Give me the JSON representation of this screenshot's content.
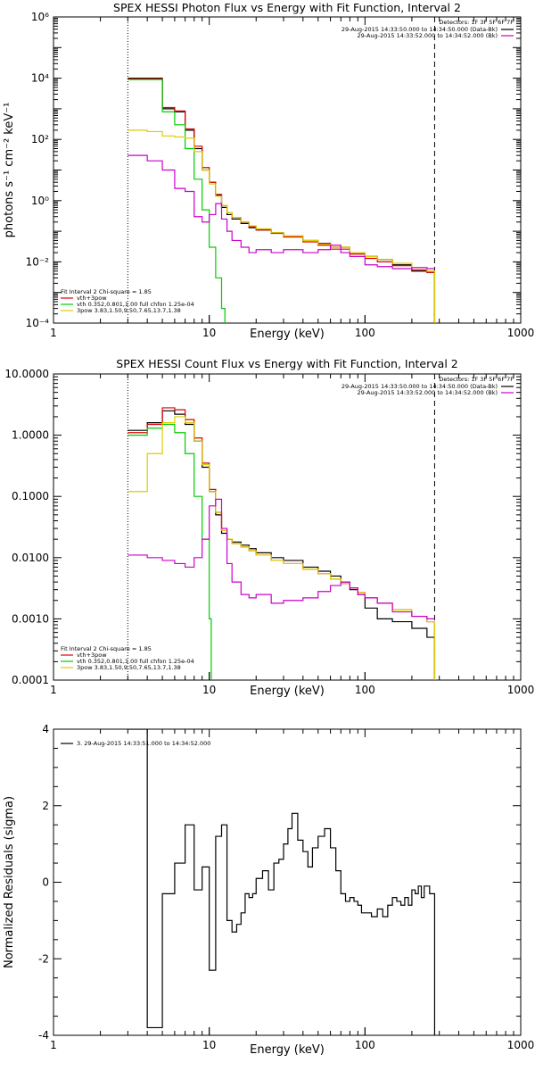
{
  "chart_data": [
    {
      "type": "line",
      "title": "SPEX HESSI Photon Flux vs Energy with Fit Function, Interval 2",
      "xlabel": "Energy (keV)",
      "ylabel": "photons s⁻¹ cm⁻² keV⁻¹",
      "xscale": "log",
      "yscale": "log",
      "xlim": [
        1,
        1000
      ],
      "ylim": [
        0.0001,
        1000000
      ],
      "x_ticks": [
        1,
        10,
        100,
        1000
      ],
      "x_tick_labels": [
        "1",
        "10",
        "100",
        "1000"
      ],
      "y_ticks": [
        0.0001,
        0.01,
        1,
        100,
        10000,
        1000000
      ],
      "y_tick_labels": [
        "10⁻⁴",
        "10⁻²",
        "10⁰",
        "10²",
        "10⁴",
        "10⁶"
      ],
      "fit_range": [
        3,
        280
      ],
      "legend_top": {
        "position": "top-right",
        "header": "Detectors: 1F 3F 5F 6F 7F",
        "entries": [
          {
            "label": "29-Aug-2015 14:33:50.000 to 14:34:50.000 (Data-Bk)",
            "color": "#000000"
          },
          {
            "label": "29-Aug-2015 14:33:52.000 to 14:34:52.000 (Bk)",
            "color": "#cc00cc"
          }
        ]
      },
      "legend_bottom": {
        "position": "bottom-left",
        "header": "Fit Interval 2   Chi-square = 1.85",
        "entries": [
          {
            "label": "vth+3pow",
            "color": "#dd0000"
          },
          {
            "label": "vth 0.352,0.801,1.00  full chfon 1.25e-04",
            "color": "#00cc00"
          },
          {
            "label": "3pow 3.83,1.50,9.50,7.65,13.7,1.38",
            "color": "#ddcc00"
          }
        ]
      },
      "series": [
        {
          "name": "Data-Bk",
          "color": "#000000",
          "x": [
            3,
            4,
            5,
            6,
            7,
            8,
            9,
            10,
            11,
            12,
            13,
            14,
            16,
            18,
            20,
            25,
            30,
            40,
            50,
            60,
            80,
            100,
            120,
            150,
            200,
            250,
            280
          ],
          "y": [
            10000,
            10000,
            1000,
            800,
            200,
            50,
            10,
            4,
            1.5,
            0.6,
            0.35,
            0.25,
            0.18,
            0.13,
            0.11,
            0.09,
            0.07,
            0.05,
            0.04,
            0.03,
            0.02,
            0.015,
            0.012,
            0.008,
            0.005,
            0.0045,
            0.0001
          ]
        },
        {
          "name": "vth+3pow",
          "color": "#dd0000",
          "x": [
            3,
            4,
            5,
            6,
            7,
            8,
            9,
            10,
            11,
            12,
            13,
            14,
            16,
            18,
            20,
            25,
            30,
            40,
            50,
            60,
            80,
            100,
            120,
            150,
            200,
            250,
            280
          ],
          "y": [
            9500,
            9500,
            1100,
            850,
            220,
            60,
            12,
            4,
            1.6,
            0.7,
            0.4,
            0.28,
            0.2,
            0.14,
            0.11,
            0.085,
            0.065,
            0.045,
            0.035,
            0.026,
            0.018,
            0.013,
            0.01,
            0.0075,
            0.0055,
            0.0045,
            0.0001
          ]
        },
        {
          "name": "vth",
          "color": "#00cc00",
          "x": [
            3,
            4,
            5,
            6,
            7,
            8,
            9,
            10,
            11,
            12,
            12.6
          ],
          "y": [
            9000,
            9000,
            800,
            300,
            50,
            5,
            0.5,
            0.03,
            0.003,
            0.0003,
            0.0001
          ]
        },
        {
          "name": "3pow",
          "color": "#ddcc00",
          "x": [
            3,
            4,
            5,
            6,
            7,
            8,
            9,
            10,
            11,
            12,
            13,
            14,
            16,
            18,
            20,
            25,
            30,
            40,
            50,
            60,
            80,
            100,
            120,
            150,
            200,
            250,
            280
          ],
          "y": [
            200,
            180,
            130,
            120,
            110,
            40,
            10,
            3.5,
            1.4,
            0.7,
            0.4,
            0.28,
            0.2,
            0.15,
            0.12,
            0.09,
            0.07,
            0.05,
            0.038,
            0.03,
            0.02,
            0.015,
            0.012,
            0.009,
            0.0065,
            0.005,
            0.0001
          ]
        },
        {
          "name": "Bk",
          "color": "#cc00cc",
          "x": [
            3,
            4,
            5,
            6,
            7,
            8,
            9,
            10,
            11,
            12,
            13,
            14,
            16,
            18,
            20,
            25,
            30,
            40,
            50,
            60,
            70,
            80,
            100,
            120,
            150,
            200,
            250,
            280
          ],
          "y": [
            30,
            20,
            10,
            2.5,
            2,
            0.3,
            0.2,
            0.35,
            0.8,
            0.25,
            0.1,
            0.05,
            0.03,
            0.02,
            0.025,
            0.02,
            0.025,
            0.02,
            0.025,
            0.035,
            0.02,
            0.015,
            0.008,
            0.007,
            0.006,
            0.0065,
            0.006,
            0.006
          ]
        }
      ]
    },
    {
      "type": "line",
      "title": "SPEX HESSI Count Flux vs Energy with Fit Function, Interval 2",
      "xlabel": "Energy (keV)",
      "ylabel": "",
      "xscale": "log",
      "yscale": "log",
      "xlim": [
        1,
        1000
      ],
      "ylim": [
        0.0001,
        10
      ],
      "x_ticks": [
        1,
        10,
        100,
        1000
      ],
      "x_tick_labels": [
        "1",
        "10",
        "100",
        "1000"
      ],
      "y_ticks": [
        0.0001,
        0.001,
        0.01,
        0.1,
        1,
        10
      ],
      "y_tick_labels": [
        "0.0001",
        "0.0010",
        "0.0100",
        "0.1000",
        "1.0000",
        "10.0000"
      ],
      "fit_range": [
        3,
        280
      ],
      "legend_top": {
        "position": "top-right",
        "header": "Detectors: 1F 3F 5F 6F 7F",
        "entries": [
          {
            "label": "29-Aug-2015 14:33:50.000 to 14:34:50.000 (Data-Bk)",
            "color": "#000000"
          },
          {
            "label": "29-Aug-2015 14:33:52.000 to 14:34:52.000 (Bk)",
            "color": "#cc00cc"
          }
        ]
      },
      "legend_bottom": {
        "position": "bottom-left",
        "header": "Fit Interval 2   Chi-square = 1.85",
        "entries": [
          {
            "label": "vth+3pow",
            "color": "#dd0000"
          },
          {
            "label": "vth 0.352,0.801,1.00  full chfon 1.25e-04",
            "color": "#00cc00"
          },
          {
            "label": "3pow 3.83,1.50,9.50,7.65,13.7,1.38",
            "color": "#ddcc00"
          }
        ]
      },
      "series": [
        {
          "name": "Data-Bk",
          "color": "#000000",
          "x": [
            3,
            4,
            5,
            6,
            7,
            8,
            9,
            10,
            11,
            12,
            13,
            14,
            16,
            18,
            20,
            25,
            30,
            40,
            50,
            60,
            70,
            80,
            90,
            100,
            120,
            150,
            200,
            250,
            280
          ],
          "y": [
            1.2,
            1.6,
            2.5,
            2.2,
            1.5,
            0.8,
            0.3,
            0.12,
            0.05,
            0.025,
            0.02,
            0.018,
            0.016,
            0.014,
            0.012,
            0.01,
            0.009,
            0.007,
            0.006,
            0.005,
            0.004,
            0.003,
            0.0025,
            0.0015,
            0.001,
            0.0009,
            0.0007,
            0.0005,
            0.0001
          ]
        },
        {
          "name": "vth+3pow",
          "color": "#dd0000",
          "x": [
            3,
            4,
            5,
            6,
            7,
            8,
            9,
            10,
            11,
            12,
            13,
            14,
            16,
            18,
            20,
            25,
            30,
            40,
            50,
            60,
            70,
            80,
            90,
            100,
            120,
            150,
            200,
            250,
            280
          ],
          "y": [
            1.1,
            1.5,
            2.8,
            2.6,
            1.8,
            0.9,
            0.35,
            0.13,
            0.055,
            0.028,
            0.02,
            0.017,
            0.015,
            0.013,
            0.011,
            0.009,
            0.008,
            0.0065,
            0.0055,
            0.0045,
            0.0038,
            0.0032,
            0.0027,
            0.0022,
            0.0018,
            0.0014,
            0.0011,
            0.0009,
            0.0001
          ]
        },
        {
          "name": "vth",
          "color": "#00cc00",
          "x": [
            3,
            4,
            5,
            6,
            7,
            8,
            9,
            10,
            10.3
          ],
          "y": [
            1,
            1.3,
            1.5,
            1.1,
            0.5,
            0.1,
            0.02,
            0.001,
            0.0001
          ]
        },
        {
          "name": "3pow",
          "color": "#ddcc00",
          "x": [
            3,
            4,
            5,
            6,
            7,
            8,
            9,
            10,
            11,
            12,
            13,
            14,
            16,
            18,
            20,
            25,
            30,
            40,
            50,
            60,
            70,
            80,
            90,
            100,
            120,
            150,
            200,
            250,
            280
          ],
          "y": [
            0.12,
            0.5,
            1.6,
            2,
            1.6,
            0.8,
            0.33,
            0.12,
            0.055,
            0.028,
            0.02,
            0.017,
            0.015,
            0.013,
            0.011,
            0.009,
            0.008,
            0.0065,
            0.0055,
            0.0045,
            0.0038,
            0.0032,
            0.0027,
            0.0022,
            0.0018,
            0.0014,
            0.0011,
            0.0009,
            0.0001
          ]
        },
        {
          "name": "Bk",
          "color": "#cc00cc",
          "x": [
            3,
            4,
            5,
            6,
            7,
            8,
            9,
            10,
            11,
            12,
            13,
            14,
            16,
            18,
            20,
            25,
            30,
            40,
            50,
            60,
            70,
            80,
            90,
            100,
            120,
            150,
            200,
            250,
            280
          ],
          "y": [
            0.011,
            0.01,
            0.009,
            0.008,
            0.007,
            0.01,
            0.02,
            0.07,
            0.09,
            0.03,
            0.008,
            0.004,
            0.0025,
            0.0022,
            0.0025,
            0.0018,
            0.002,
            0.0022,
            0.0028,
            0.0035,
            0.004,
            0.0032,
            0.0025,
            0.0022,
            0.0018,
            0.0013,
            0.0011,
            0.001,
            0.001
          ]
        }
      ]
    },
    {
      "type": "line",
      "title": "",
      "xlabel": "Energy (keV)",
      "ylabel": "Normalized Residuals (sigma)",
      "xscale": "log",
      "yscale": "linear",
      "xlim": [
        1,
        1000
      ],
      "ylim": [
        -4,
        4
      ],
      "x_ticks": [
        1,
        10,
        100,
        1000
      ],
      "x_tick_labels": [
        "1",
        "10",
        "100",
        "1000"
      ],
      "y_ticks": [
        -4,
        -2,
        0,
        2,
        4
      ],
      "y_tick_labels": [
        "-4",
        "-2",
        "0",
        "2",
        "4"
      ],
      "legend_top": {
        "position": "top-left",
        "entries": [
          {
            "label": "3. 29-Aug-2015 14:33:51.000 to 14:34:52.000",
            "color": "#000000"
          }
        ]
      },
      "series": [
        {
          "name": "Residuals",
          "color": "#000000",
          "x": [
            3,
            4,
            5,
            6,
            7,
            8,
            9,
            10,
            11,
            12,
            13,
            14,
            15,
            16,
            17,
            18,
            19,
            20,
            22,
            24,
            26,
            28,
            30,
            32,
            34,
            37,
            40,
            43,
            46,
            50,
            55,
            60,
            65,
            70,
            75,
            80,
            85,
            90,
            95,
            100,
            110,
            120,
            130,
            140,
            150,
            160,
            170,
            180,
            190,
            200,
            210,
            220,
            230,
            240,
            260,
            280
          ],
          "y": [
            4,
            -3.8,
            -0.3,
            0.5,
            1.5,
            -0.2,
            0.4,
            -2.3,
            1.2,
            1.5,
            -1,
            -1.3,
            -1.1,
            -0.8,
            -0.3,
            -0.4,
            -0.3,
            0.1,
            0.3,
            -0.2,
            0.5,
            0.6,
            1.0,
            1.4,
            1.8,
            1.1,
            0.8,
            0.4,
            0.9,
            1.2,
            1.4,
            0.9,
            0.3,
            -0.3,
            -0.5,
            -0.4,
            -0.5,
            -0.6,
            -0.8,
            -0.8,
            -0.9,
            -0.7,
            -0.9,
            -0.6,
            -0.4,
            -0.5,
            -0.6,
            -0.4,
            -0.6,
            -0.2,
            -0.3,
            -0.1,
            -0.4,
            -0.1,
            -0.3,
            -4
          ]
        }
      ]
    }
  ]
}
